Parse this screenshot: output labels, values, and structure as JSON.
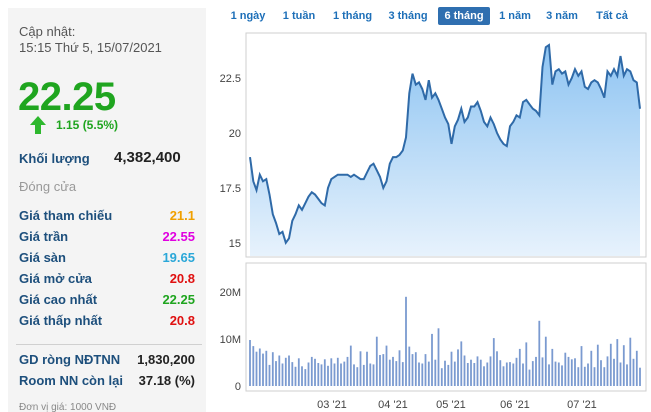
{
  "quote": {
    "update_label": "Cập nhật:",
    "update_time": "15:15 Thứ 5, 15/07/2021",
    "price": "22.25",
    "change": "1.15 (5.5%)",
    "volume_label": "Khối lượng",
    "volume_value": "4,382,400",
    "status": "Đóng cửa"
  },
  "stats": [
    {
      "label": "Giá tham chiếu",
      "value": "21.1",
      "color": "#f0a000"
    },
    {
      "label": "Giá trần",
      "value": "22.55",
      "color": "#e000e0"
    },
    {
      "label": "Giá sàn",
      "value": "19.65",
      "color": "#2aa7d8"
    },
    {
      "label": "Giá mở cửa",
      "value": "20.8",
      "color": "#e01010"
    },
    {
      "label": "Giá cao nhất",
      "value": "22.25",
      "color": "#1fa51f"
    },
    {
      "label": "Giá thấp nhất",
      "value": "20.8",
      "color": "#e01010"
    }
  ],
  "foreign": [
    {
      "label": "GD ròng NĐTNN",
      "value": "1,830,200"
    },
    {
      "label": "Room NN còn lại",
      "value": "37.18 (%)"
    }
  ],
  "unit_note": "Đơn vị giá: 1000 VNĐ",
  "tabs": [
    {
      "label": "1 ngày",
      "active": false
    },
    {
      "label": "1 tuần",
      "active": false
    },
    {
      "label": "1 tháng",
      "active": false
    },
    {
      "label": "3 tháng",
      "active": false
    },
    {
      "label": "6 tháng",
      "active": true
    },
    {
      "label": "1 năm",
      "active": false
    },
    {
      "label": "3 năm",
      "active": false
    },
    {
      "label": "Tất cả",
      "active": false
    }
  ],
  "colors": {
    "up": "#1fa51f",
    "line": "#2f6aa8",
    "area_top": "#8ec4f2",
    "area_bottom": "#e7f2fc",
    "volume_bar": "#7a9ad0",
    "active_tab": "#2f6fb0"
  },
  "chart_data": {
    "type": "area",
    "price_yticks": [
      "22.5",
      "20",
      "17.5",
      "15"
    ],
    "price_ylim": [
      14.4,
      24.5
    ],
    "volume_yticks": [
      "20M",
      "10M",
      "0"
    ],
    "volume_ylim": [
      0,
      26
    ],
    "x_ticks": [
      "03 '21",
      "04 '21",
      "05 '21",
      "06 '21",
      "07 '21"
    ],
    "price": [
      18.9,
      17.8,
      17.4,
      18.1,
      17.8,
      17.9,
      17.2,
      16.3,
      15.9,
      15.4,
      15.5,
      15.0,
      15.2,
      16.0,
      16.3,
      16.7,
      16.5,
      16.8,
      17.1,
      17.3,
      17.2,
      17.0,
      16.8,
      16.7,
      17.5,
      17.9,
      18.0,
      18.1,
      18.1,
      18.1,
      18.1,
      18.0,
      18.1,
      18.0,
      17.9,
      17.9,
      18.2,
      18.5,
      18.6,
      18.3,
      18.0,
      17.5,
      17.8,
      18.6,
      18.9,
      18.9,
      19.0,
      19.2,
      19.8,
      21.8,
      22.7,
      22.2,
      22.3,
      22.0,
      21.5,
      22.4,
      21.6,
      21.8,
      21.5,
      21.1,
      20.7,
      20.4,
      19.5,
      20.3,
      20.6,
      21.1,
      20.5,
      20.7,
      21.2,
      21.2,
      21.4,
      21.0,
      20.5,
      20.3,
      20.7,
      20.4,
      20.0,
      19.7,
      19.5,
      19.4,
      20.3,
      20.5,
      20.8,
      20.7,
      21.4,
      21.5,
      21.3,
      21.1,
      21.0,
      20.8,
      23.0,
      23.9,
      24.0,
      22.2,
      22.8,
      22.9,
      22.7,
      22.8,
      22.2,
      22.5,
      22.9,
      22.6,
      22.8,
      22.1,
      22.0,
      22.3,
      22.4,
      22.3,
      22.0,
      21.6,
      22.8,
      22.6,
      22.9,
      22.6,
      23.5,
      22.6,
      22.9,
      22.8,
      22.4,
      22.3,
      21.1
    ],
    "volume_millions": [
      9.8,
      8.5,
      7.3,
      8.0,
      6.9,
      7.5,
      4.5,
      7.2,
      5.3,
      6.5,
      4.8,
      6.0,
      6.5,
      5.1,
      4.1,
      5.9,
      4.2,
      3.6,
      5.0,
      6.2,
      5.8,
      4.9,
      4.6,
      5.7,
      4.3,
      5.9,
      4.8,
      6.0,
      4.8,
      5.2,
      6.2,
      8.6,
      4.6,
      4.0,
      7.4,
      4.5,
      7.3,
      4.8,
      4.6,
      10.5,
      6.6,
      6.8,
      8.6,
      5.6,
      6.2,
      5.3,
      7.6,
      5.1,
      19.0,
      8.4,
      6.8,
      7.2,
      5.0,
      4.8,
      6.8,
      5.2,
      11.1,
      5.6,
      12.3,
      3.8,
      5.4,
      4.5,
      7.3,
      5.2,
      7.8,
      9.5,
      6.5,
      4.9,
      5.6,
      4.9,
      6.3,
      5.6,
      4.2,
      5.0,
      6.3,
      10.2,
      7.4,
      5.5,
      4.2,
      5.0,
      5.1,
      4.8,
      6.0,
      7.9,
      4.8,
      9.3,
      3.5,
      5.3,
      6.2,
      13.9,
      6.1,
      10.5,
      4.6,
      7.9,
      5.2,
      5.0,
      4.4,
      7.1,
      6.2,
      5.7,
      5.9,
      4.0,
      8.5,
      4.1,
      4.8,
      7.5,
      4.0,
      8.8,
      5.5,
      4.0,
      6.3,
      9.0,
      5.8,
      10.0,
      5.0,
      8.7,
      4.6,
      10.3,
      5.8,
      7.5,
      3.9
    ]
  }
}
